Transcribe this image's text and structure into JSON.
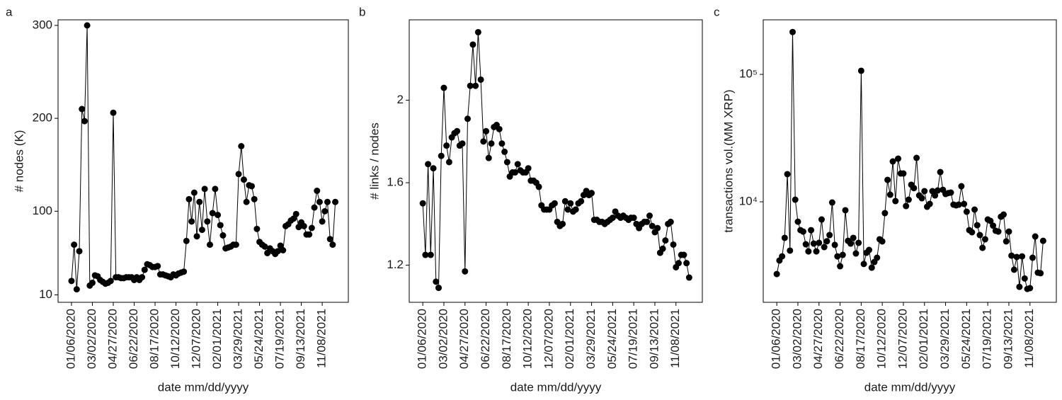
{
  "chart_data": [
    {
      "type": "line",
      "panel": "a",
      "ylabel": "# nodes (K)",
      "xlabel": "date mm/dd/yyyy",
      "color": "#000000",
      "ylog": false,
      "xlim": [
        "12/01/2019",
        "01/17/2022"
      ],
      "xticks": [
        "01/06/2020",
        "03/02/2020",
        "04/27/2020",
        "06/22/2020",
        "08/17/2020",
        "10/12/2020",
        "12/07/2020",
        "02/01/2021",
        "03/29/2021",
        "05/24/2021",
        "07/19/2021",
        "09/13/2021",
        "11/08/2021"
      ],
      "ylim": [
        2,
        306
      ],
      "yticks": [
        10,
        100,
        200,
        300
      ],
      "x": [
        "01/06/2020",
        "01/13/2020",
        "01/20/2020",
        "01/27/2020",
        "02/03/2020",
        "02/10/2020",
        "02/17/2020",
        "02/24/2020",
        "03/02/2020",
        "03/09/2020",
        "03/16/2020",
        "03/23/2020",
        "03/30/2020",
        "04/06/2020",
        "04/13/2020",
        "04/20/2020",
        "04/27/2020",
        "05/04/2020",
        "05/11/2020",
        "05/18/2020",
        "05/25/2020",
        "06/01/2020",
        "06/08/2020",
        "06/15/2020",
        "06/22/2020",
        "06/29/2020",
        "07/06/2020",
        "07/13/2020",
        "07/20/2020",
        "07/27/2020",
        "08/03/2020",
        "08/10/2020",
        "08/17/2020",
        "08/24/2020",
        "08/31/2020",
        "09/07/2020",
        "09/14/2020",
        "09/21/2020",
        "09/28/2020",
        "10/05/2020",
        "10/12/2020",
        "10/19/2020",
        "10/26/2020",
        "11/02/2020",
        "11/09/2020",
        "11/16/2020",
        "11/23/2020",
        "11/30/2020",
        "12/07/2020",
        "12/14/2020",
        "12/21/2020",
        "12/28/2020",
        "01/04/2021",
        "01/11/2021",
        "01/18/2021",
        "01/25/2021",
        "02/01/2021",
        "02/08/2021",
        "02/15/2021",
        "02/22/2021",
        "03/01/2021",
        "03/08/2021",
        "03/15/2021",
        "03/22/2021",
        "03/29/2021",
        "04/05/2021",
        "04/12/2021",
        "04/19/2021",
        "04/26/2021",
        "05/03/2021",
        "05/10/2021",
        "05/17/2021",
        "05/24/2021",
        "05/31/2021",
        "06/07/2021",
        "06/14/2021",
        "06/21/2021",
        "06/28/2021",
        "07/05/2021",
        "07/12/2021",
        "07/19/2021",
        "07/26/2021",
        "08/02/2021",
        "08/09/2021",
        "08/16/2021",
        "08/23/2021",
        "08/30/2021",
        "09/06/2021",
        "09/13/2021",
        "09/20/2021",
        "09/27/2021",
        "10/04/2021",
        "10/11/2021",
        "10/18/2021",
        "10/25/2021",
        "11/01/2021",
        "11/08/2021",
        "11/15/2021",
        "11/22/2021",
        "11/29/2021",
        "12/06/2021",
        "12/13/2021"
      ],
      "values": [
        25,
        64,
        16,
        57,
        210,
        197,
        300,
        20,
        23,
        31,
        30,
        26,
        24,
        22,
        23,
        25,
        206,
        29,
        29,
        28,
        28,
        29,
        29,
        29,
        26,
        29,
        26,
        29,
        37,
        43,
        42,
        40,
        40,
        41,
        32,
        32,
        31,
        30,
        29,
        32,
        31,
        33,
        34,
        35,
        68,
        113,
        89,
        120,
        73,
        110,
        80,
        124,
        89,
        64,
        98,
        124,
        96,
        85,
        74,
        60,
        61,
        62,
        64,
        64,
        140,
        170,
        134,
        110,
        128,
        127,
        113,
        81,
        67,
        64,
        62,
        55,
        60,
        57,
        54,
        57,
        63,
        58,
        84,
        86,
        90,
        92,
        97,
        83,
        88,
        84,
        75,
        75,
        82,
        104,
        122,
        110,
        89,
        100,
        110,
        70,
        64,
        110
      ]
    },
    {
      "type": "line",
      "panel": "b",
      "ylabel": "# links / nodes",
      "xlabel": "date mm/dd/yyyy",
      "color": "#000000",
      "ylog": false,
      "xlim": [
        "12/01/2019",
        "01/17/2022"
      ],
      "xticks": [
        "01/06/2020",
        "03/02/2020",
        "04/27/2020",
        "06/22/2020",
        "08/17/2020",
        "10/12/2020",
        "12/07/2020",
        "02/01/2021",
        "03/29/2021",
        "05/24/2021",
        "07/19/2021",
        "09/13/2021",
        "11/08/2021"
      ],
      "ylim": [
        1.02,
        2.39
      ],
      "yticks": [
        1.2,
        1.6,
        2
      ],
      "x": [
        "01/06/2020",
        "01/13/2020",
        "01/20/2020",
        "01/27/2020",
        "02/03/2020",
        "02/10/2020",
        "02/17/2020",
        "02/24/2020",
        "03/02/2020",
        "03/09/2020",
        "03/16/2020",
        "03/23/2020",
        "03/30/2020",
        "04/06/2020",
        "04/13/2020",
        "04/20/2020",
        "04/27/2020",
        "05/04/2020",
        "05/11/2020",
        "05/18/2020",
        "05/25/2020",
        "06/01/2020",
        "06/08/2020",
        "06/15/2020",
        "06/22/2020",
        "06/29/2020",
        "07/06/2020",
        "07/13/2020",
        "07/20/2020",
        "07/27/2020",
        "08/03/2020",
        "08/10/2020",
        "08/17/2020",
        "08/24/2020",
        "08/31/2020",
        "09/07/2020",
        "09/14/2020",
        "09/21/2020",
        "09/28/2020",
        "10/05/2020",
        "10/12/2020",
        "10/19/2020",
        "10/26/2020",
        "11/02/2020",
        "11/09/2020",
        "11/16/2020",
        "11/23/2020",
        "11/30/2020",
        "12/07/2020",
        "12/14/2020",
        "12/21/2020",
        "12/28/2020",
        "01/04/2021",
        "01/11/2021",
        "01/18/2021",
        "01/25/2021",
        "02/01/2021",
        "02/08/2021",
        "02/15/2021",
        "02/22/2021",
        "03/01/2021",
        "03/08/2021",
        "03/15/2021",
        "03/22/2021",
        "03/29/2021",
        "04/05/2021",
        "04/12/2021",
        "04/19/2021",
        "04/26/2021",
        "05/03/2021",
        "05/10/2021",
        "05/17/2021",
        "05/24/2021",
        "05/31/2021",
        "06/07/2021",
        "06/14/2021",
        "06/21/2021",
        "06/28/2021",
        "07/05/2021",
        "07/12/2021",
        "07/19/2021",
        "07/26/2021",
        "08/02/2021",
        "08/09/2021",
        "08/16/2021",
        "08/23/2021",
        "08/30/2021",
        "09/06/2021",
        "09/13/2021",
        "09/20/2021",
        "09/27/2021",
        "10/04/2021",
        "10/11/2021",
        "10/18/2021",
        "10/25/2021",
        "11/01/2021",
        "11/08/2021",
        "11/15/2021",
        "11/22/2021",
        "11/29/2021",
        "12/06/2021",
        "12/13/2021"
      ],
      "values": [
        1.5,
        1.25,
        1.69,
        1.25,
        1.67,
        1.12,
        1.09,
        1.73,
        2.06,
        1.78,
        1.7,
        1.82,
        1.84,
        1.85,
        1.78,
        1.79,
        1.17,
        1.91,
        2.07,
        2.27,
        2.07,
        2.33,
        2.1,
        1.8,
        1.85,
        1.72,
        1.79,
        1.87,
        1.88,
        1.86,
        1.79,
        1.75,
        1.7,
        1.63,
        1.65,
        1.65,
        1.69,
        1.66,
        1.65,
        1.65,
        1.67,
        1.61,
        1.61,
        1.6,
        1.58,
        1.49,
        1.47,
        1.47,
        1.47,
        1.49,
        1.5,
        1.41,
        1.39,
        1.4,
        1.51,
        1.47,
        1.5,
        1.46,
        1.47,
        1.5,
        1.51,
        1.54,
        1.56,
        1.54,
        1.55,
        1.42,
        1.42,
        1.41,
        1.41,
        1.4,
        1.41,
        1.42,
        1.43,
        1.46,
        1.44,
        1.43,
        1.44,
        1.43,
        1.42,
        1.43,
        1.43,
        1.4,
        1.38,
        1.4,
        1.41,
        1.41,
        1.44,
        1.39,
        1.36,
        1.38,
        1.26,
        1.28,
        1.32,
        1.4,
        1.41,
        1.3,
        1.19,
        1.21,
        1.25,
        1.25,
        1.21,
        1.14
      ]
    },
    {
      "type": "line",
      "panel": "c",
      "ylabel": "transactions vol.(MM XRP)",
      "xlabel": "date mm/dd/yyyy",
      "color": "#000000",
      "ylog": true,
      "xlim": [
        "12/01/2019",
        "01/17/2022"
      ],
      "xticks": [
        "01/06/2020",
        "03/02/2020",
        "04/27/2020",
        "06/22/2020",
        "08/17/2020",
        "10/12/2020",
        "12/07/2020",
        "02/01/2021",
        "03/29/2021",
        "05/24/2021",
        "07/19/2021",
        "09/13/2021",
        "11/08/2021"
      ],
      "ylim": [
        1626,
        268000
      ],
      "yticks": [
        {
          "value": 10000,
          "label": "10⁴"
        },
        {
          "value": 100000,
          "label": "10⁵"
        }
      ],
      "x": [
        "01/06/2020",
        "01/13/2020",
        "01/20/2020",
        "01/27/2020",
        "02/03/2020",
        "02/10/2020",
        "02/17/2020",
        "02/24/2020",
        "03/02/2020",
        "03/09/2020",
        "03/16/2020",
        "03/23/2020",
        "03/30/2020",
        "04/06/2020",
        "04/13/2020",
        "04/20/2020",
        "04/27/2020",
        "05/04/2020",
        "05/11/2020",
        "05/18/2020",
        "05/25/2020",
        "06/01/2020",
        "06/08/2020",
        "06/15/2020",
        "06/22/2020",
        "06/29/2020",
        "07/06/2020",
        "07/13/2020",
        "07/20/2020",
        "07/27/2020",
        "08/03/2020",
        "08/10/2020",
        "08/17/2020",
        "08/24/2020",
        "08/31/2020",
        "09/07/2020",
        "09/14/2020",
        "09/21/2020",
        "09/28/2020",
        "10/05/2020",
        "10/12/2020",
        "10/19/2020",
        "10/26/2020",
        "11/02/2020",
        "11/09/2020",
        "11/16/2020",
        "11/23/2020",
        "11/30/2020",
        "12/07/2020",
        "12/14/2020",
        "12/21/2020",
        "12/28/2020",
        "01/04/2021",
        "01/11/2021",
        "01/18/2021",
        "01/25/2021",
        "02/01/2021",
        "02/08/2021",
        "02/15/2021",
        "02/22/2021",
        "03/01/2021",
        "03/08/2021",
        "03/15/2021",
        "03/22/2021",
        "03/29/2021",
        "04/05/2021",
        "04/12/2021",
        "04/19/2021",
        "04/26/2021",
        "05/03/2021",
        "05/10/2021",
        "05/17/2021",
        "05/24/2021",
        "05/31/2021",
        "06/07/2021",
        "06/14/2021",
        "06/21/2021",
        "06/28/2021",
        "07/05/2021",
        "07/12/2021",
        "07/19/2021",
        "07/26/2021",
        "08/02/2021",
        "08/09/2021",
        "08/16/2021",
        "08/23/2021",
        "08/30/2021",
        "09/06/2021",
        "09/13/2021",
        "09/20/2021",
        "09/27/2021",
        "10/04/2021",
        "10/11/2021",
        "10/18/2021",
        "10/25/2021",
        "11/01/2021",
        "11/08/2021",
        "11/15/2021",
        "11/22/2021",
        "11/29/2021",
        "12/06/2021",
        "12/13/2021"
      ],
      "values": [
        2710,
        3460,
        3730,
        5210,
        16480,
        4140,
        215000,
        10390,
        6980,
        5990,
        5840,
        4640,
        4080,
        5990,
        4700,
        4080,
        4760,
        7260,
        4410,
        4900,
        5480,
        9870,
        4590,
        3730,
        3120,
        3830,
        8580,
        4940,
        4700,
        5210,
        3930,
        4760,
        106700,
        3250,
        3980,
        4190,
        3040,
        3370,
        3640,
        5080,
        4890,
        8150,
        14860,
        11360,
        20740,
        10130,
        21810,
        16680,
        16680,
        9260,
        10390,
        13600,
        12800,
        22100,
        11220,
        10660,
        12120,
        9140,
        9620,
        12120,
        11220,
        12270,
        17110,
        12420,
        11510,
        11700,
        11810,
        9500,
        9380,
        9500,
        13250,
        9620,
        8360,
        5990,
        5770,
        8690,
        6550,
        5480,
        4350,
        5080,
        7260,
        7080,
        6500,
        5920,
        5840,
        7640,
        7940,
        4890,
        5840,
        3780,
        2930,
        3690,
        2150,
        3730,
        2500,
        2070,
        2100,
        3640,
        5340,
        2780,
        2750,
        4940
      ]
    }
  ]
}
